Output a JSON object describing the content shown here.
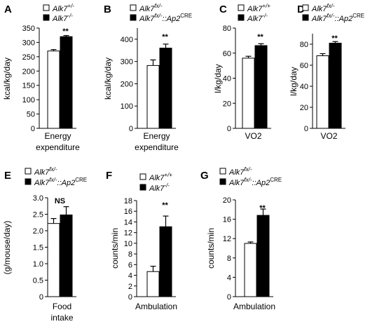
{
  "colors": {
    "open_bar": "#ffffff",
    "filled_bar": "#000000",
    "stroke": "#000000"
  },
  "chart_data": [
    {
      "panel": "A",
      "type": "bar",
      "ylabel": "kcal/kg/day",
      "categories_label": [
        "Energy",
        "expenditure"
      ],
      "ylim": [
        0,
        350
      ],
      "yticks": [
        "0",
        "50",
        "100",
        "150",
        "200",
        "250",
        "300",
        "350"
      ],
      "significance": "**",
      "series": [
        {
          "name": "Alk7+/-",
          "base": "Alk7",
          "sup": "+/-",
          "sub": "",
          "fill": "open",
          "value": 270,
          "error": 5
        },
        {
          "name": "Alk7-/-",
          "base": "Alk7",
          "sup": "-/-",
          "sub": "",
          "fill": "filled",
          "value": 320,
          "error": 4
        }
      ]
    },
    {
      "panel": "B",
      "type": "bar",
      "ylabel": "kcal/kg/day",
      "categories_label": [
        "Energy",
        "expenditure"
      ],
      "ylim": [
        0,
        450
      ],
      "yticks": [
        "0",
        "100",
        "200",
        "300",
        "400"
      ],
      "significance": "**",
      "series": [
        {
          "name": "Alk7fx/-",
          "base": "Alk7",
          "sup": "fx/-",
          "sub": "",
          "fill": "open",
          "value": 282,
          "error": 25
        },
        {
          "name": "Alk7fx/-::Ap2CRE",
          "base": "Alk7",
          "sup": "fx/-",
          "sub": "::Ap2",
          "sub_sup": "CRE",
          "fill": "filled",
          "value": 360,
          "error": 18
        }
      ]
    },
    {
      "panel": "C",
      "type": "bar",
      "ylabel": "l/kg/day",
      "categories_label": [
        "VO2"
      ],
      "ylim": [
        0,
        80
      ],
      "yticks": [
        "0",
        "20",
        "40",
        "60",
        "80"
      ],
      "significance": "**",
      "series": [
        {
          "name": "Alk7+/+",
          "base": "Alk7",
          "sup": "+/+",
          "sub": "",
          "fill": "open",
          "value": 56,
          "error": 1.5
        },
        {
          "name": "Alk7-/-",
          "base": "Alk7",
          "sup": "-/-",
          "sub": "",
          "fill": "filled",
          "value": 66,
          "error": 1.5
        }
      ]
    },
    {
      "panel": "D",
      "type": "bar",
      "ylabel": "l/kg/day",
      "categories_label": [
        "VO2"
      ],
      "ylim": [
        0,
        90
      ],
      "yticks": [
        "0",
        "20",
        "40",
        "60",
        "80"
      ],
      "significance": "**",
      "series": [
        {
          "name": "Alk7fx/-",
          "base": "Alk7",
          "sup": "fx/-",
          "sub": "",
          "fill": "open",
          "value": 69,
          "error": 2
        },
        {
          "name": "Alk7fx/-::Ap2CRE",
          "base": "Alk7",
          "sup": "fx/-",
          "sub": "::Ap2",
          "sub_sup": "CRE",
          "fill": "filled",
          "value": 81,
          "error": 1.5
        }
      ]
    },
    {
      "panel": "E",
      "type": "bar",
      "ylabel": "(g/mouse/day)",
      "categories_label": [
        "Food",
        "intake"
      ],
      "ylim": [
        0,
        3.0
      ],
      "yticks": [
        "0",
        "0.5",
        "1.0",
        "1.5",
        "2.0",
        "2.5",
        "3.0"
      ],
      "significance": "NS",
      "series": [
        {
          "name": "Alk7fx/-",
          "base": "Alk7",
          "sup": "fx/-",
          "sub": "",
          "fill": "open",
          "value": 2.22,
          "error": 0.15
        },
        {
          "name": "Alk7fx/-::Ap2CRE",
          "base": "Alk7",
          "sup": "fx/-",
          "sub": "::Ap2",
          "sub_sup": "CRE",
          "fill": "filled",
          "value": 2.48,
          "error": 0.25
        }
      ]
    },
    {
      "panel": "F",
      "type": "bar",
      "ylabel": "counts/min",
      "categories_label": [
        "Ambulation"
      ],
      "ylim": [
        0,
        18
      ],
      "yticks": [
        "0",
        "2",
        "4",
        "6",
        "8",
        "10",
        "12",
        "14",
        "16",
        "18"
      ],
      "significance": "**",
      "series": [
        {
          "name": "Alk7+/+",
          "base": "Alk7",
          "sup": "+/+",
          "sub": "",
          "fill": "open",
          "value": 4.7,
          "error": 1.0
        },
        {
          "name": "Alk7-/-",
          "base": "Alk7",
          "sup": "-/-",
          "sub": "",
          "fill": "filled",
          "value": 13.1,
          "error": 2.0
        }
      ]
    },
    {
      "panel": "G",
      "type": "bar",
      "ylabel": "counts/min",
      "categories_label": [
        "Ambulation"
      ],
      "ylim": [
        0,
        20
      ],
      "yticks": [
        "0",
        "4",
        "8",
        "12",
        "16",
        "20"
      ],
      "significance": "**",
      "series": [
        {
          "name": "Alk7fx/-",
          "base": "Alk7",
          "sup": "fx/-",
          "sub": "",
          "fill": "open",
          "value": 11.0,
          "error": 0.3
        },
        {
          "name": "Alk7fx/-::Ap2CRE",
          "base": "Alk7",
          "sup": "fx/-",
          "sub": "::Ap2",
          "sub_sup": "CRE",
          "fill": "filled",
          "value": 16.8,
          "error": 1.3
        }
      ]
    }
  ]
}
